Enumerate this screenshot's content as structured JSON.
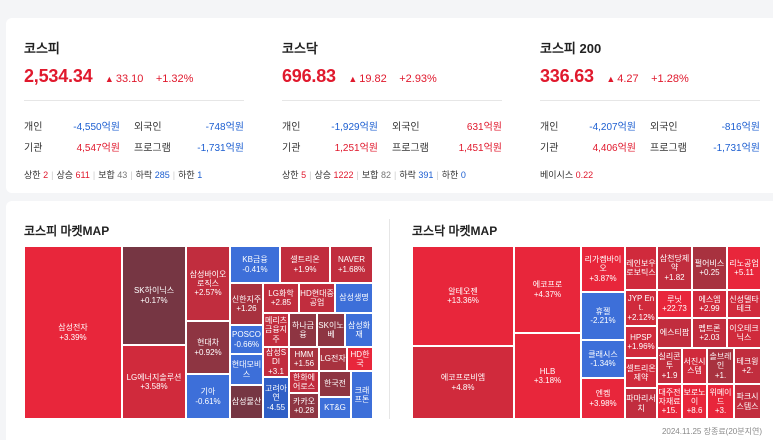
{
  "indices": [
    {
      "name": "코스피",
      "value": "2,534.34",
      "change": "33.10",
      "rate": "+1.32%",
      "investors": {
        "individual_label": "개인",
        "individual_value": "-4,550억원",
        "foreign_label": "외국인",
        "foreign_value": "-748억원",
        "institution_label": "기관",
        "institution_value": "4,547억원",
        "program_label": "프로그램",
        "program_value": "-1,731억원"
      },
      "stats": {
        "upper_label": "상한",
        "upper": "2",
        "up_label": "상승",
        "up": "611",
        "flat_label": "보합",
        "flat": "43",
        "down_label": "하락",
        "down": "285",
        "lower_label": "하한",
        "lower": "1"
      }
    },
    {
      "name": "코스닥",
      "value": "696.83",
      "change": "19.82",
      "rate": "+2.93%",
      "investors": {
        "individual_label": "개인",
        "individual_value": "-1,929억원",
        "foreign_label": "외국인",
        "foreign_value": "631억원",
        "institution_label": "기관",
        "institution_value": "1,251억원",
        "program_label": "프로그램",
        "program_value": "1,451억원"
      },
      "stats": {
        "upper_label": "상한",
        "upper": "5",
        "up_label": "상승",
        "up": "1222",
        "flat_label": "보합",
        "flat": "82",
        "down_label": "하락",
        "down": "391",
        "lower_label": "하한",
        "lower": "0"
      }
    },
    {
      "name": "코스피 200",
      "value": "336.63",
      "change": "4.27",
      "rate": "+1.28%",
      "investors": {
        "individual_label": "개인",
        "individual_value": "-4,207억원",
        "foreign_label": "외국인",
        "foreign_value": "-816억원",
        "institution_label": "기관",
        "institution_value": "4,406억원",
        "program_label": "프로그램",
        "program_value": "-1,731억원"
      },
      "basis_label": "베이시스",
      "basis_value": "0.22"
    }
  ],
  "kospi_map": {
    "title": "코스피 마켓MAP",
    "tiles": [
      {
        "name": "삼성전자",
        "rate": "+3.39%"
      },
      {
        "name": "SK하이닉스",
        "rate": "+0.17%"
      },
      {
        "name": "LG에너지솔루션",
        "rate": "+3.58%"
      },
      {
        "name": "삼성바이오로직스",
        "rate": "+2.57%"
      },
      {
        "name": "현대차",
        "rate": "+0.92%"
      },
      {
        "name": "기아",
        "rate": "-0.61%"
      },
      {
        "name": "KB금융",
        "rate": "-0.41%"
      },
      {
        "name": "셀트리온",
        "rate": "+1.9%"
      },
      {
        "name": "NAVER",
        "rate": "+1.68%"
      },
      {
        "name": "신한지주",
        "rate": "+1.26"
      },
      {
        "name": "LG화학",
        "rate": "+2.85"
      },
      {
        "name": "HD현대중공업",
        "rate": ""
      },
      {
        "name": "삼성생명",
        "rate": ""
      },
      {
        "name": "POSCO",
        "rate": "-0.66%"
      },
      {
        "name": "메리츠금융지주",
        "rate": ""
      },
      {
        "name": "하나금융",
        "rate": ""
      },
      {
        "name": "SK이노베",
        "rate": ""
      },
      {
        "name": "삼성화재",
        "rate": ""
      },
      {
        "name": "현대모비스",
        "rate": ""
      },
      {
        "name": "삼성SDI",
        "rate": "+3.1"
      },
      {
        "name": "HMM",
        "rate": "+1.56"
      },
      {
        "name": "LG전자",
        "rate": ""
      },
      {
        "name": "HD한국",
        "rate": ""
      },
      {
        "name": "한화에어로스",
        "rate": ""
      },
      {
        "name": "삼성물산",
        "rate": ""
      },
      {
        "name": "고려아연",
        "rate": "-4.55"
      },
      {
        "name": "카카오",
        "rate": "+0.28"
      },
      {
        "name": "한국전",
        "rate": ""
      },
      {
        "name": "KT&G",
        "rate": ""
      },
      {
        "name": "크래프톤",
        "rate": ""
      }
    ]
  },
  "kosdaq_map": {
    "title": "코스닥 마켓MAP",
    "tiles": [
      {
        "name": "알테오젠",
        "rate": "+13.36%"
      },
      {
        "name": "에코프로비엠",
        "rate": "+4.8%"
      },
      {
        "name": "에코프로",
        "rate": "+4.37%"
      },
      {
        "name": "HLB",
        "rate": "+3.18%"
      },
      {
        "name": "리가켐바이오",
        "rate": "+3.87%"
      },
      {
        "name": "휴젤",
        "rate": "-2.21%"
      },
      {
        "name": "클래시스",
        "rate": "-1.34%"
      },
      {
        "name": "엔켐",
        "rate": "+3.98%"
      },
      {
        "name": "레인보우로보틱스",
        "rate": ""
      },
      {
        "name": "JYP Ent.",
        "rate": "+2.12%"
      },
      {
        "name": "HPSP",
        "rate": "+1.96%"
      },
      {
        "name": "셀트리온제약",
        "rate": ""
      },
      {
        "name": "파마리서치",
        "rate": ""
      },
      {
        "name": "삼천당제약",
        "rate": "+1.82"
      },
      {
        "name": "펄어비스",
        "rate": "+0.25"
      },
      {
        "name": "리노공업",
        "rate": "+5.11"
      },
      {
        "name": "루닛",
        "rate": "+22.73"
      },
      {
        "name": "에스엠",
        "rate": "+2.99"
      },
      {
        "name": "신성델타테크",
        "rate": ""
      },
      {
        "name": "에스티팜",
        "rate": ""
      },
      {
        "name": "펩트론",
        "rate": "+2.03"
      },
      {
        "name": "이오테크닉스",
        "rate": ""
      },
      {
        "name": "실리콘투",
        "rate": "+1.9"
      },
      {
        "name": "서진시스템",
        "rate": ""
      },
      {
        "name": "솔브레인",
        "rate": "+1."
      },
      {
        "name": "테크윙",
        "rate": "+2."
      },
      {
        "name": "대주전자재료",
        "rate": "+15."
      },
      {
        "name": "보로노이",
        "rate": "+8.6"
      },
      {
        "name": "위메이드",
        "rate": "+3."
      },
      {
        "name": "파크시스템스",
        "rate": ""
      }
    ]
  },
  "timestamp": "2024.11.25 장종료(20분지연)"
}
